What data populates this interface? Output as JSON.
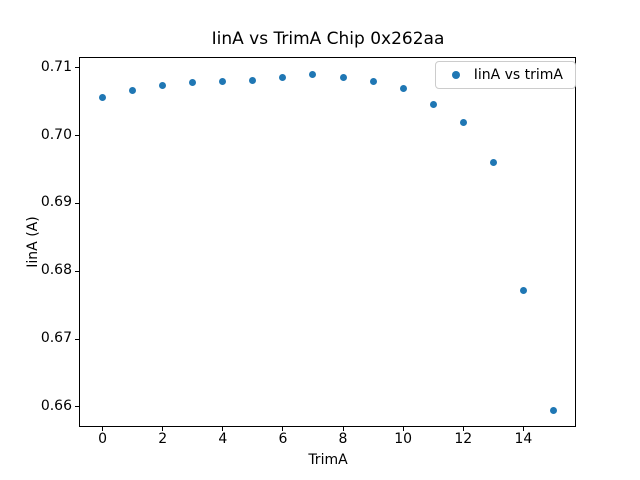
{
  "figure": {
    "background": "#ffffff",
    "text_color": "#000000"
  },
  "chart_data": {
    "type": "scatter",
    "title": "IinA vs TrimA Chip 0x262aa",
    "xlabel": "TrimA",
    "ylabel": "IinA (A)",
    "legend_position": "upper right",
    "grid": false,
    "marker_color": "#1f77b4",
    "x": [
      0,
      1,
      2,
      3,
      4,
      5,
      6,
      7,
      8,
      9,
      10,
      11,
      12,
      13,
      14,
      15
    ],
    "series": [
      {
        "name": "IinA vs trimA",
        "y": [
          0.7056,
          0.7066,
          0.7074,
          0.7078,
          0.708,
          0.7081,
          0.7086,
          0.709,
          0.7085,
          0.708,
          0.7069,
          0.7046,
          0.7019,
          0.6961,
          0.6772,
          0.6595
        ]
      }
    ],
    "xlim": [
      -0.75,
      15.75
    ],
    "ylim": [
      0.657,
      0.7115
    ],
    "xticks": [
      0,
      2,
      4,
      6,
      8,
      10,
      12,
      14
    ],
    "yticks": [
      0.66,
      0.67,
      0.68,
      0.69,
      0.7,
      0.71
    ],
    "ytick_labels": [
      "0.66",
      "0.67",
      "0.68",
      "0.69",
      "0.70",
      "0.71"
    ]
  }
}
